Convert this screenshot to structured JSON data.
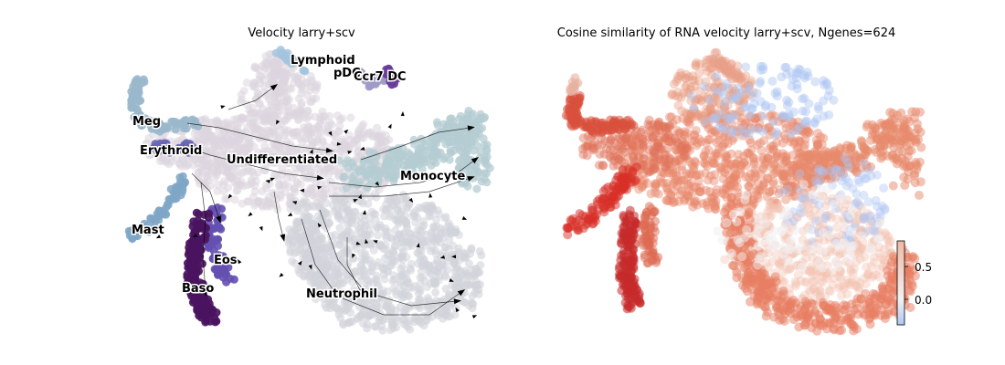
{
  "chart_data": [
    {
      "type": "scatter",
      "title": "Velocity larry+scv",
      "xlabel": "",
      "ylabel": "",
      "axes_visible": false,
      "overlay": "velocity streamlines with arrowheads",
      "clusters": [
        {
          "name": "Lymphoid",
          "color": "#a4c4de"
        },
        {
          "name": "pDC",
          "color": "#9e9ac8"
        },
        {
          "name": "Ccr7 DC",
          "color": "#6a3d9a"
        },
        {
          "name": "Meg",
          "color": "#9ab8cc"
        },
        {
          "name": "Erythroid",
          "color": "#6a66b4"
        },
        {
          "name": "Undifferentiated",
          "color": "#ddd6de"
        },
        {
          "name": "Monocyte",
          "color": "#b4ccd2"
        },
        {
          "name": "Mast",
          "color": "#7fa6c6"
        },
        {
          "name": "Eos",
          "color": "#6450b0"
        },
        {
          "name": "Baso",
          "color": "#4a1460"
        },
        {
          "name": "Neutrophil",
          "color": "#d2d4da"
        }
      ]
    },
    {
      "type": "scatter",
      "title": "Cosine similarity of RNA velocity larry+scv, Ngenes=624",
      "xlabel": "",
      "ylabel": "",
      "axes_visible": false,
      "colormap": "coolwarm",
      "colorbar": {
        "ticks": [
          0.0,
          0.5
        ],
        "tick_labels": [
          "0.0",
          "0.5"
        ],
        "range": [
          -0.4,
          0.9
        ]
      },
      "colors": {
        "high": "#d73027",
        "mid": "#f2f0f2",
        "low": "#aec6f2"
      }
    }
  ]
}
